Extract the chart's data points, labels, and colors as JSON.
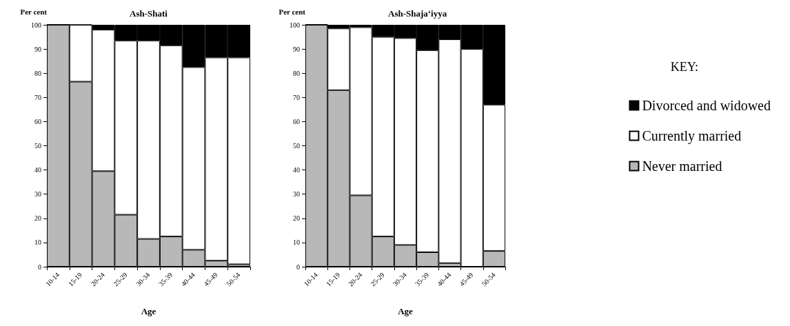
{
  "chart_data": [
    {
      "type": "bar",
      "title": "Ash-Shati",
      "ylabel": "Per cent",
      "xlabel": "Age",
      "stacked": true,
      "categories": [
        "10-14",
        "15-19",
        "20-24",
        "25-29",
        "30-34",
        "35-39",
        "40-44",
        "45-49",
        "50-54"
      ],
      "ylim": [
        0,
        100
      ],
      "yticks": [
        0,
        10,
        20,
        30,
        40,
        50,
        60,
        70,
        80,
        90,
        100
      ],
      "series": [
        {
          "color": "#b8b8b8",
          "values": [
            100,
            76.5,
            39.5,
            21.5,
            11.5,
            12.5,
            7,
            2.5,
            1
          ]
        },
        {
          "color": "#ffffff",
          "values": [
            0,
            23.5,
            58.5,
            72,
            82,
            79,
            75.5,
            84,
            85.5
          ]
        },
        {
          "color": "#000000",
          "values": [
            0,
            0,
            2,
            6.5,
            6.5,
            8.5,
            17.5,
            13.5,
            13.5
          ]
        }
      ]
    },
    {
      "type": "bar",
      "title": "Ash-Shaja‘iyya",
      "ylabel": "Per cent",
      "xlabel": "Age",
      "stacked": true,
      "legend": "right",
      "legend_title": "KEY:",
      "categories": [
        "10-14",
        "15-19",
        "20-24",
        "25-29",
        "30-34",
        "35-39",
        "40-44",
        "45-49",
        "50-54"
      ],
      "ylim": [
        0,
        100
      ],
      "yticks": [
        0,
        10,
        20,
        30,
        40,
        50,
        60,
        70,
        80,
        90,
        100
      ],
      "series": [
        {
          "name": "Never married",
          "color": "#b8b8b8",
          "values": [
            100,
            73,
            29.5,
            12.5,
            9,
            6,
            1.5,
            0,
            6.5
          ]
        },
        {
          "name": "Currently married",
          "color": "#ffffff",
          "values": [
            0,
            25.5,
            69.5,
            82.5,
            85.5,
            83.5,
            92.5,
            90,
            60.5
          ]
        },
        {
          "name": "Divorced and widowed",
          "color": "#000000",
          "values": [
            0,
            1.5,
            1,
            5,
            5.5,
            10.5,
            6,
            10,
            33
          ]
        }
      ]
    }
  ]
}
